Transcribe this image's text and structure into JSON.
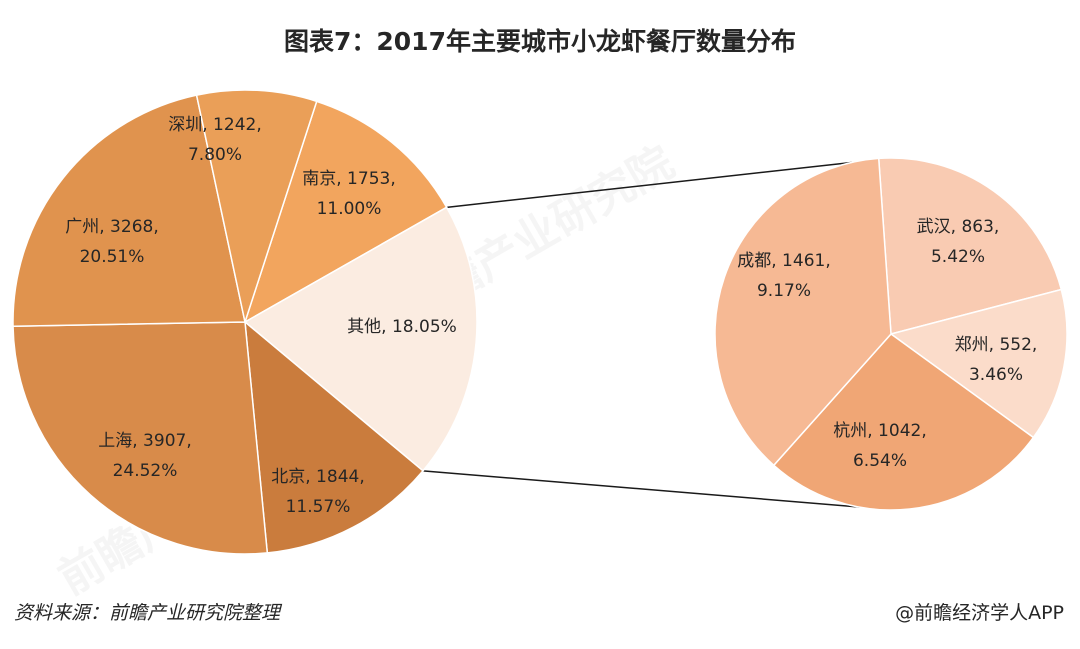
{
  "title": "图表7：2017年主要城市小龙虾餐厅数量分布",
  "source": "资料来源：前瞻产业研究院整理",
  "credit": "@前瞻经济学人APP",
  "watermark": "前瞻产业研究院",
  "chart_data": [
    {
      "type": "pie",
      "slices": [
        {
          "name": "南京",
          "count": "1753",
          "pct": "11.00%",
          "value": 11.0,
          "color": "#f2a55e"
        },
        {
          "name": "其他",
          "count": "",
          "pct": "18.05%",
          "value": 18.05,
          "color": "#fbece1"
        },
        {
          "name": "北京",
          "count": "1844",
          "pct": "11.57%",
          "value": 11.57,
          "color": "#ca7c3d"
        },
        {
          "name": "上海",
          "count": "3907",
          "pct": "24.52%",
          "value": 24.52,
          "color": "#d88b4a"
        },
        {
          "name": "广州",
          "count": "3268",
          "pct": "20.51%",
          "value": 20.51,
          "color": "#e0934e"
        },
        {
          "name": "深圳",
          "count": "1242",
          "pct": "7.80%",
          "value": 7.8,
          "color": "#ea9f58"
        }
      ]
    },
    {
      "type": "pie",
      "slices": [
        {
          "name": "武汉",
          "count": "863",
          "pct": "5.42%",
          "value": 5.42,
          "color": "#f9cbb2"
        },
        {
          "name": "郑州",
          "count": "552",
          "pct": "3.46%",
          "value": 3.46,
          "color": "#fbdcca"
        },
        {
          "name": "杭州",
          "count": "1042",
          "pct": "6.54%",
          "value": 6.54,
          "color": "#f0a675"
        },
        {
          "name": "成都",
          "count": "1461",
          "pct": "9.17%",
          "value": 9.17,
          "color": "#f6b994"
        }
      ]
    }
  ]
}
